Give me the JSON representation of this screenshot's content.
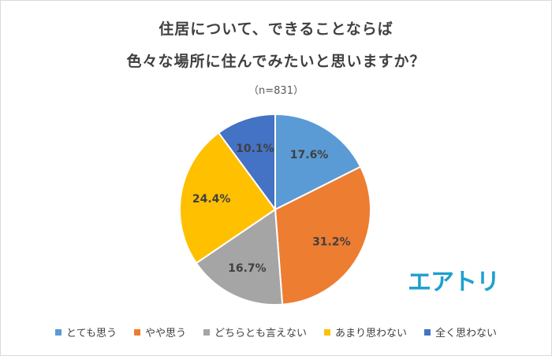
{
  "chart_data": {
    "type": "pie",
    "title_line1": "住居について、できることならば",
    "title_line2": "色々な場所に住んでみたいと思いますか？",
    "subtitle": "（n=831）",
    "slices": [
      {
        "label": "とても思う",
        "value": 17.6,
        "value_label": "17.6%",
        "color": "#5b9bd5"
      },
      {
        "label": "やや思う",
        "value": 31.2,
        "value_label": "31.2%",
        "color": "#ed7d31"
      },
      {
        "label": "どちらとも言えない",
        "value": 16.7,
        "value_label": "16.7%",
        "color": "#a5a5a5"
      },
      {
        "label": "あまり思わない",
        "value": 24.4,
        "value_label": "24.4%",
        "color": "#ffc000"
      },
      {
        "label": "全く思わない",
        "value": 10.1,
        "value_label": "10.1%",
        "color": "#4472c4"
      }
    ],
    "legend_position": "bottom"
  },
  "logo_text": "エアトリ"
}
